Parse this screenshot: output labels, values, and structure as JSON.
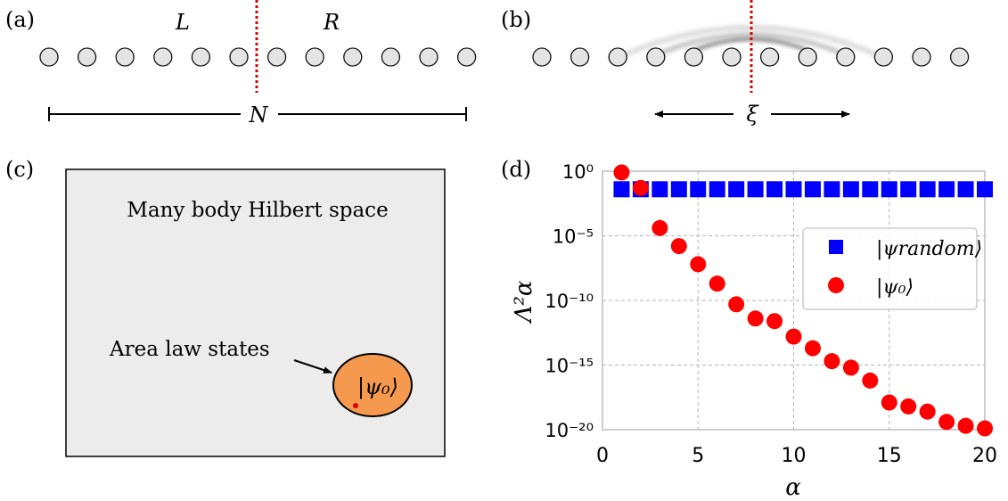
{
  "panel_a": {
    "label": "(a)",
    "left_label": "L",
    "right_label": "R",
    "size_label": "N",
    "site_count": 12,
    "cut_after_site": 6
  },
  "panel_b": {
    "label": "(b)",
    "length_label": "ξ",
    "site_count": 12,
    "cut_after_site": 6
  },
  "panel_c": {
    "label": "(c)",
    "title": "Many body Hilbert space",
    "area_law_label": "Area law states",
    "state_label": "|ψ₀⟩",
    "colors": {
      "box_fill": "#ececec",
      "ellipse_fill": "#f5994f",
      "dot": "#e00000"
    }
  },
  "panel_d": {
    "label": "(d)",
    "chart_data": {
      "type": "scatter",
      "xlabel": "α",
      "ylabel": "Λ²α",
      "xlim": [
        0,
        20
      ],
      "ylim_exponent": [
        -20,
        0
      ],
      "log_y": true,
      "grid": true,
      "legend_position": "center-right",
      "x_ticks": [
        0,
        5,
        10,
        15,
        20
      ],
      "y_ticks": [
        "10⁰",
        "10⁻⁵",
        "10⁻¹⁰",
        "10⁻¹⁵",
        "10⁻²⁰"
      ],
      "y_tick_exponents": [
        0,
        -5,
        -10,
        -15,
        -20
      ],
      "series": [
        {
          "name": "|ψrandom⟩",
          "marker": "square",
          "color": "#0000ff",
          "x": [
            1,
            2,
            3,
            4,
            5,
            6,
            7,
            8,
            9,
            10,
            11,
            12,
            13,
            14,
            15,
            16,
            17,
            18,
            19,
            20
          ],
          "log10_y": [
            -1.4,
            -1.4,
            -1.4,
            -1.4,
            -1.4,
            -1.4,
            -1.4,
            -1.4,
            -1.4,
            -1.4,
            -1.4,
            -1.4,
            -1.4,
            -1.4,
            -1.4,
            -1.4,
            -1.4,
            -1.4,
            -1.4,
            -1.4
          ]
        },
        {
          "name": "|ψ₀⟩",
          "marker": "circle",
          "color": "#ff0000",
          "x": [
            1,
            2,
            3,
            4,
            5,
            6,
            7,
            8,
            9,
            10,
            11,
            12,
            13,
            14,
            15,
            16,
            17,
            18,
            19,
            20
          ],
          "log10_y": [
            -0.1,
            -1.3,
            -4.4,
            -5.8,
            -7.2,
            -8.7,
            -10.3,
            -11.4,
            -11.6,
            -12.8,
            -13.7,
            -14.7,
            -15.2,
            -16.2,
            -17.9,
            -18.2,
            -18.6,
            -19.4,
            -19.7,
            -19.9
          ]
        }
      ]
    }
  }
}
